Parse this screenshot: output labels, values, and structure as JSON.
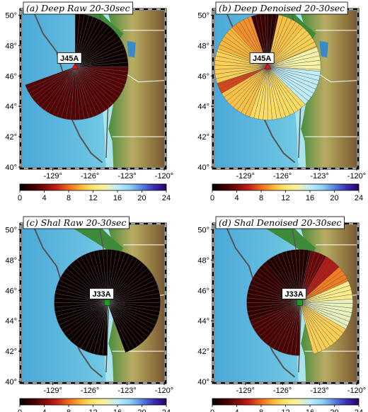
{
  "colorbar": {
    "ticks": [
      "0",
      "4",
      "8",
      "12",
      "16",
      "20",
      "24"
    ],
    "stops": [
      "#000000",
      "#3a0000",
      "#7a0a0a",
      "#c0201a",
      "#ee6a1a",
      "#f9b43a",
      "#fde86e",
      "#f6f2a6",
      "#bfeefa",
      "#8fd4f4",
      "#5a80e0",
      "#3a2fb0",
      "#2a0060"
    ]
  },
  "colors": {
    "ocean_deep": "#4aa8d8",
    "ocean_shelf": "#a8e3ee",
    "land_low": "#3f8a3a",
    "land_mid": "#b8ac62",
    "land_high": "#7a5a30",
    "wedge_edge": "#555555"
  },
  "panels": [
    {
      "id": "a",
      "title": "(a) Deep Raw 20-30sec",
      "station": {
        "name": "J45A",
        "lon": -127.2,
        "lat": 46.6,
        "marker": "red-triangle"
      },
      "x_ticks": [
        "-129°",
        "-126°",
        "-123°",
        "-120°"
      ],
      "y_ticks": [
        "40°",
        "42°",
        "44°",
        "46°",
        "48°",
        "50°"
      ],
      "wedges": [
        {
          "from": 0,
          "to": 90,
          "value": 0.5
        },
        {
          "from": 90,
          "to": 250,
          "value": 2.8
        }
      ]
    },
    {
      "id": "b",
      "title": "(b) Deep Denoised 20-30sec",
      "station": {
        "name": "J45A",
        "lon": -127.2,
        "lat": 46.6,
        "marker": "red-triangle"
      },
      "x_ticks": [
        "-129°",
        "-126°",
        "-123°",
        "-120°"
      ],
      "y_ticks": [
        "40°",
        "42°",
        "44°",
        "46°",
        "48°",
        "50°"
      ],
      "wedges": [
        {
          "from": 0,
          "to": 12,
          "value": 1.5
        },
        {
          "from": 12,
          "to": 42,
          "value": 10.5
        },
        {
          "from": 42,
          "to": 68,
          "value": 11
        },
        {
          "from": 68,
          "to": 95,
          "value": 14
        },
        {
          "from": 95,
          "to": 135,
          "value": 16
        },
        {
          "from": 135,
          "to": 200,
          "value": 11.5
        },
        {
          "from": 200,
          "to": 240,
          "value": 10.5
        },
        {
          "from": 240,
          "to": 252,
          "value": 7
        },
        {
          "from": 252,
          "to": 290,
          "value": 11
        },
        {
          "from": 290,
          "to": 318,
          "value": 10
        },
        {
          "from": 318,
          "to": 342,
          "value": 9
        },
        {
          "from": 342,
          "to": 360,
          "value": 2
        }
      ]
    },
    {
      "id": "c",
      "title": "(c) Shal Raw 20-30sec",
      "station": {
        "name": "J33A",
        "lon": -124.6,
        "lat": 45.2,
        "marker": "green-square"
      },
      "x_ticks": [
        "-129°",
        "-126°",
        "-123°",
        "-120°"
      ],
      "y_ticks": [
        "40°",
        "42°",
        "44°",
        "46°",
        "48°",
        "50°"
      ],
      "wedges": [
        {
          "from": 0,
          "to": 160,
          "value": 0.4
        },
        {
          "from": 180,
          "to": 360,
          "value": 0.4
        }
      ]
    },
    {
      "id": "d",
      "title": "(d) Shal Denoised 20-30sec",
      "station": {
        "name": "J33A",
        "lon": -124.6,
        "lat": 45.2,
        "marker": "green-square"
      },
      "x_ticks": [
        "-129°",
        "-126°",
        "-123°",
        "-120°"
      ],
      "y_ticks": [
        "40°",
        "42°",
        "44°",
        "46°",
        "48°",
        "50°"
      ],
      "wedges": [
        {
          "from": 0,
          "to": 12,
          "value": 1.2
        },
        {
          "from": 12,
          "to": 30,
          "value": 3.5
        },
        {
          "from": 30,
          "to": 48,
          "value": 5.5
        },
        {
          "from": 48,
          "to": 66,
          "value": 8.5
        },
        {
          "from": 66,
          "to": 86,
          "value": 13
        },
        {
          "from": 86,
          "to": 120,
          "value": 14.5
        },
        {
          "from": 120,
          "to": 165,
          "value": 11
        },
        {
          "from": 180,
          "to": 250,
          "value": 2.5
        },
        {
          "from": 250,
          "to": 320,
          "value": 1.8
        },
        {
          "from": 320,
          "to": 360,
          "value": 1.2
        }
      ]
    }
  ]
}
